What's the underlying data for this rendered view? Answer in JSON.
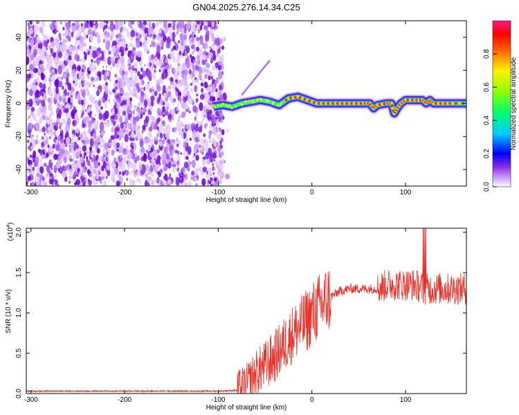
{
  "title": "GN04.2025.276.14.34.C25",
  "chart_data": [
    {
      "type": "heatmap",
      "title": "GN04.2025.276.14.34.C25",
      "xlabel": "Height of straight line (km)",
      "ylabel": "Frequency (Hz)",
      "xlim": [
        -305,
        165
      ],
      "ylim": [
        -50,
        50
      ],
      "xticks": [
        -300,
        -200,
        -100,
        0,
        100
      ],
      "yticks": [
        -40,
        -20,
        0,
        20,
        40
      ],
      "noise_region_x": [
        -305,
        -95
      ],
      "ridge": {
        "x": [
          -105,
          -95,
          -85,
          -75,
          -65,
          -55,
          -45,
          -35,
          -25,
          -15,
          -5,
          5,
          15,
          25,
          35,
          45,
          55,
          62,
          66,
          70,
          80,
          85,
          88,
          91,
          95,
          100,
          110,
          118,
          122,
          126,
          130,
          140,
          150,
          165
        ],
        "y": [
          -2,
          -1,
          -2,
          0,
          1,
          2,
          1,
          -1,
          3,
          4,
          2,
          0,
          0,
          0,
          0,
          0,
          0,
          0,
          -3,
          -1,
          0,
          0,
          -6,
          -3,
          0,
          2,
          2,
          2,
          0,
          2,
          0,
          0,
          0,
          0
        ]
      },
      "colorbar": {
        "label": "Normalized spectral amplitude",
        "ticks": [
          0.0,
          0.2,
          0.4,
          0.6,
          0.8
        ],
        "range": [
          0,
          1
        ]
      }
    },
    {
      "type": "line",
      "xlabel": "Height of straight line (km)",
      "ylabel": "SNR (10 * v/v)",
      "scale_label": "(x10",
      "scale_exp": "4",
      "scale_close": ")",
      "xlim": [
        -305,
        165
      ],
      "ylim": [
        0,
        2.05
      ],
      "xticks": [
        -300,
        -200,
        -100,
        0,
        100
      ],
      "yticks": [
        "0.0",
        "0.5",
        "1.0",
        "1.5",
        "2.0"
      ],
      "series": [
        {
          "name": "SNR",
          "color": "#e8302a",
          "x": [
            -305,
            -200,
            -100,
            -80,
            -70,
            -60,
            -50,
            -40,
            -30,
            -20,
            -10,
            0,
            10,
            20,
            30,
            40,
            50,
            60,
            70,
            80,
            90,
            100,
            110,
            120,
            130,
            140,
            150,
            165
          ],
          "y": [
            0.03,
            0.03,
            0.03,
            0.04,
            0.1,
            0.25,
            0.35,
            0.45,
            0.6,
            0.75,
            0.85,
            0.98,
            1.1,
            1.2,
            1.27,
            1.3,
            1.3,
            1.3,
            1.3,
            1.35,
            1.35,
            1.35,
            1.35,
            1.3,
            1.3,
            1.3,
            1.3,
            1.3
          ]
        }
      ]
    }
  ]
}
